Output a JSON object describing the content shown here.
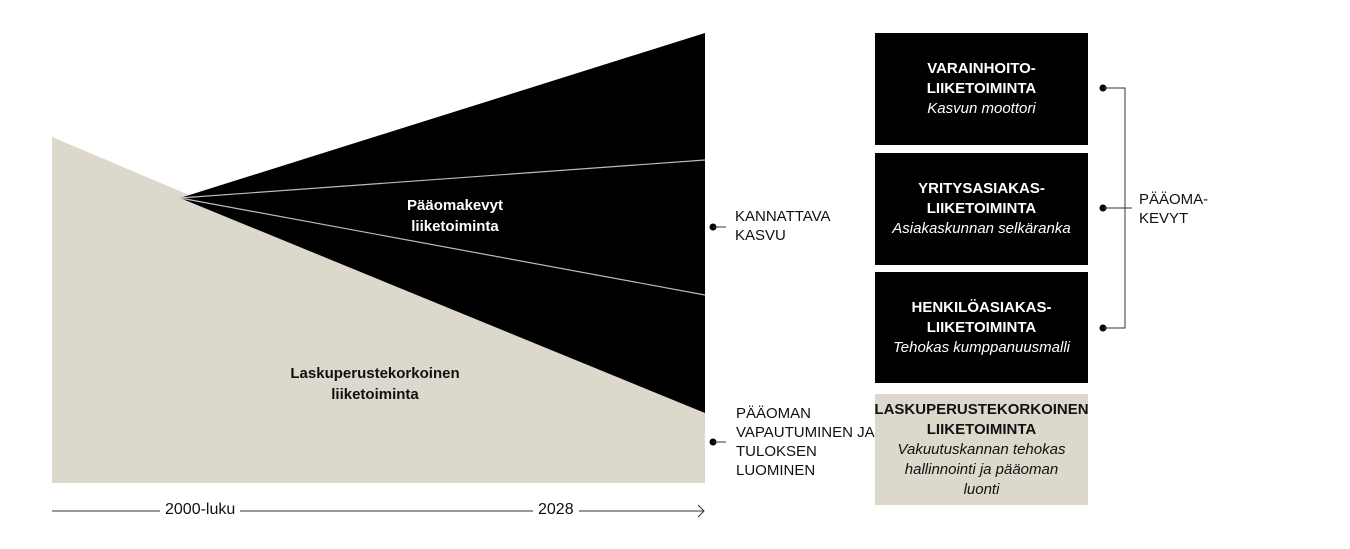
{
  "colors": {
    "dark": "#000000",
    "beige": "#ddd8cc"
  },
  "diagram": {
    "capital_light_label": "Pääomakevyt liiketoiminta",
    "guaranteed_rate_label": "Laskuperustekorkoinen liiketoiminta",
    "axis": {
      "start": "2000-luku",
      "end": "2028"
    },
    "outcomes": [
      {
        "label": "KANNATTAVA KASVU"
      },
      {
        "label": "PÄÄOMAN VAPAUTUMINEN JA TULOKSEN LUOMINEN"
      }
    ]
  },
  "boxes": [
    {
      "title1": "VARAINHOITO-",
      "title2": "LIIKETOIMINTA",
      "subtitle": "Kasvun moottori"
    },
    {
      "title1": "YRITYSASIAKAS-",
      "title2": "LIIKETOIMINTA",
      "subtitle": "Asiakaskunnan selkäranka"
    },
    {
      "title1": "HENKILÖASIAKAS-",
      "title2": "LIIKETOIMINTA",
      "subtitle": "Tehokas kumppanuusmalli"
    },
    {
      "title1": "LASKUPERUSTEKORKOINEN",
      "title2": "LIIKETOIMINTA",
      "subtitle": "Vakuutuskannan tehokas hallinnointi ja pääoman luonti"
    }
  ],
  "bracket": {
    "label1": "PÄÄOMA-",
    "label2": "KEVYT"
  }
}
